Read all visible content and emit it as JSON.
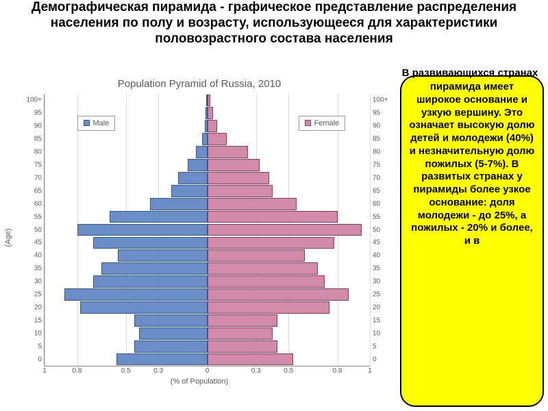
{
  "title": "Демографическая пирамида - графическое представление распределения населения по полу и возрасту, использующееся для характеристики половозрастного состава населения",
  "overlay_text": "В развивающихся странах",
  "callout_text": "пирамида имеет широкое основание и узкую вершину. Это означает высокую долю детей и молодежи (40%) и незначительную долю пожилых (5-7%). В развитых странах у пирамиды более узкое основание: доля молодежи - до 25%, а пожилых - 20% и более, и в",
  "chart": {
    "type": "population-pyramid",
    "title": "Population Pyramid of Russia, 2010",
    "xlabel": "(% of Population)",
    "ylabel": "(Age)",
    "xlim": [
      -1.0,
      1.0
    ],
    "xticks": [
      1.0,
      0.8,
      0.5,
      0.3,
      0.0,
      0.3,
      0.5,
      0.8,
      1.0
    ],
    "xtick_positions_pct": [
      0,
      10,
      25,
      35,
      50,
      65,
      75,
      90,
      100
    ],
    "age_labels": [
      "100+",
      "95",
      "90",
      "85",
      "80",
      "75",
      "70",
      "65",
      "60",
      "55",
      "50",
      "45",
      "40",
      "35",
      "30",
      "25",
      "20",
      "15",
      "10",
      "5",
      "0"
    ],
    "male": {
      "label": "Male",
      "color_fill": "#6a8cc7",
      "color_border": "#2e5b94",
      "values": [
        0.005,
        0.01,
        0.015,
        0.03,
        0.07,
        0.12,
        0.18,
        0.22,
        0.35,
        0.6,
        0.8,
        0.7,
        0.55,
        0.65,
        0.7,
        0.88,
        0.78,
        0.45,
        0.42,
        0.45,
        0.56
      ]
    },
    "female": {
      "label": "Female",
      "color_fill": "#d18aa8",
      "color_border": "#8b3a5a",
      "values": [
        0.02,
        0.035,
        0.06,
        0.12,
        0.25,
        0.32,
        0.38,
        0.4,
        0.55,
        0.8,
        0.95,
        0.78,
        0.6,
        0.68,
        0.72,
        0.87,
        0.75,
        0.43,
        0.4,
        0.43,
        0.53
      ]
    },
    "legend_male_pos": {
      "left_pct": 10,
      "top_pct": 8
    },
    "legend_female_pos": {
      "left_pct": 78,
      "top_pct": 8
    },
    "background_color": "#ffffff",
    "grid_color": "#d9d9d9",
    "axis_fontsize": 10,
    "title_fontsize": 15
  }
}
